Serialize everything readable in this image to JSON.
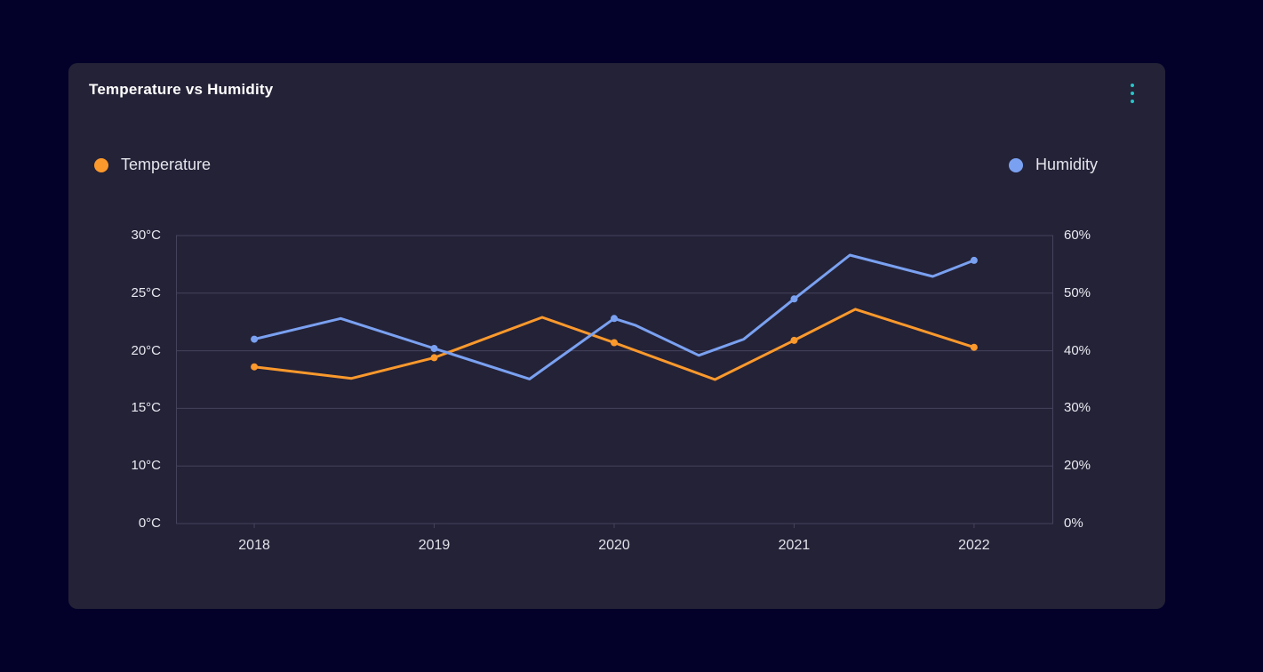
{
  "page": {
    "background": "#030129"
  },
  "card": {
    "background": "#242237",
    "title": "Temperature vs Humidity",
    "menu_icon": "kebab-vertical-icon",
    "menu_color": "#27C5C8"
  },
  "legend": {
    "position": "top, split left/right",
    "items": [
      {
        "label": "Temperature",
        "color": "#FB992C",
        "side": "left"
      },
      {
        "label": "Humidity",
        "color": "#7AA1F1",
        "side": "right"
      }
    ]
  },
  "chart_data": {
    "type": "line",
    "title": "Temperature vs Humidity",
    "grid": "horizontal-only",
    "grid_color": "#45435C",
    "x_axis": {
      "labels": [
        "2018",
        "2019",
        "2020",
        "2021",
        "2022"
      ],
      "label_years": [
        2018,
        2019,
        2020,
        2021,
        2022
      ],
      "range_years": [
        2017.565,
        2022.44
      ]
    },
    "y_axis_left": {
      "series": "Temperature",
      "unit": "°C",
      "tick_labels": [
        "30°C",
        "25°C",
        "20°C",
        "15°C",
        "10°C",
        "0°C"
      ],
      "tick_values": [
        30,
        25,
        20,
        15,
        10,
        0
      ]
    },
    "y_axis_right": {
      "series": "Humidity",
      "unit": "%",
      "tick_labels": [
        "60%",
        "50%",
        "40%",
        "30%",
        "20%",
        "0%"
      ],
      "tick_values": [
        60,
        50,
        40,
        30,
        20,
        0
      ]
    },
    "series": [
      {
        "name": "Temperature",
        "axis": "left",
        "color": "#FB992C",
        "points": [
          {
            "x": 2018.0,
            "y": 18.6,
            "marker": true
          },
          {
            "x": 2018.54,
            "y": 17.6,
            "marker": false
          },
          {
            "x": 2019.0,
            "y": 19.4,
            "marker": true
          },
          {
            "x": 2019.6,
            "y": 22.9,
            "marker": false
          },
          {
            "x": 2020.0,
            "y": 20.7,
            "marker": true
          },
          {
            "x": 2020.56,
            "y": 17.5,
            "marker": false
          },
          {
            "x": 2021.0,
            "y": 20.9,
            "marker": true
          },
          {
            "x": 2021.34,
            "y": 23.6,
            "marker": false
          },
          {
            "x": 2022.0,
            "y": 20.3,
            "marker": true
          }
        ]
      },
      {
        "name": "Humidity",
        "axis": "right",
        "color": "#7AA1F1",
        "points": [
          {
            "x": 2018.0,
            "y": 42.0,
            "marker": true
          },
          {
            "x": 2018.48,
            "y": 45.6,
            "marker": false
          },
          {
            "x": 2019.0,
            "y": 40.4,
            "marker": true
          },
          {
            "x": 2019.53,
            "y": 35.1,
            "marker": false
          },
          {
            "x": 2020.0,
            "y": 45.6,
            "marker": true
          },
          {
            "x": 2020.12,
            "y": 44.4,
            "marker": false
          },
          {
            "x": 2020.47,
            "y": 39.2,
            "marker": false
          },
          {
            "x": 2020.72,
            "y": 42.0,
            "marker": false
          },
          {
            "x": 2021.0,
            "y": 49.0,
            "marker": true
          },
          {
            "x": 2021.31,
            "y": 56.6,
            "marker": false
          },
          {
            "x": 2021.77,
            "y": 52.9,
            "marker": false
          },
          {
            "x": 2022.0,
            "y": 55.7,
            "marker": true
          }
        ]
      }
    ]
  }
}
